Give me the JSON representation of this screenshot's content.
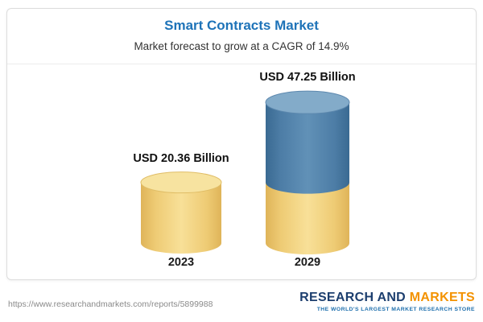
{
  "chart_data": {
    "type": "bar",
    "title": "Smart Contracts Market",
    "subtitle": "Market forecast to grow at a CAGR of 14.9%",
    "categories": [
      "2023",
      "2029"
    ],
    "values": [
      20.36,
      47.25
    ],
    "value_labels": [
      "USD 20.36 Billion",
      "USD 47.25 Billion"
    ],
    "unit": "USD Billion",
    "cagr_pct": 14.9,
    "segments": {
      "2029": {
        "base_yellow": 20.36,
        "growth_blue": 26.89
      }
    },
    "layout": {
      "legend": "none",
      "grid": false,
      "bar_style": "3d-cylinder"
    },
    "colors": {
      "title": "#1e73b8",
      "bar_yellow": "#f3d683",
      "bar_blue": "#54779f",
      "label_text": "#111111"
    }
  },
  "footer": {
    "url": "https://www.researchandmarkets.com/reports/5899988",
    "logo": {
      "part1": "RESEARCH AND",
      "part2": "MARKETS",
      "tagline": "THE WORLD'S LARGEST MARKET RESEARCH STORE"
    }
  }
}
